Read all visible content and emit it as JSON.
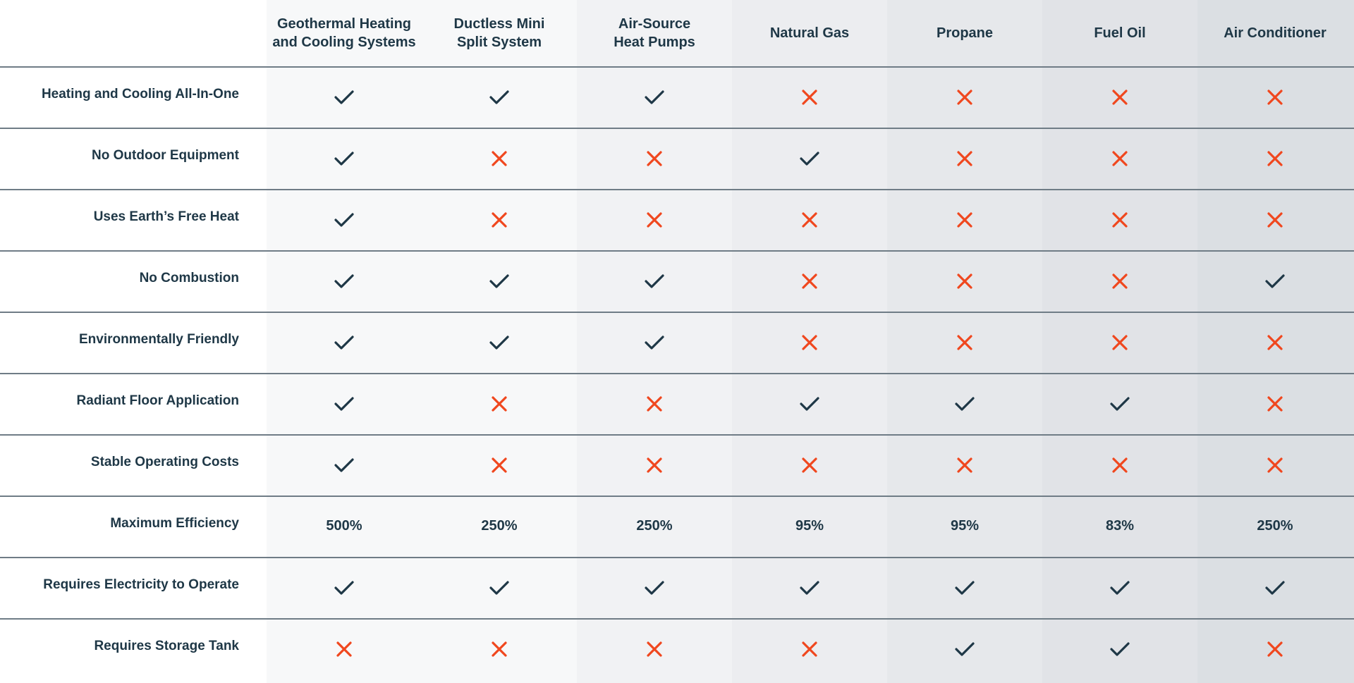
{
  "colors": {
    "check": "#1e3746",
    "cross": "#f0471e",
    "text": "#1e3746",
    "divider": "#6f7c86",
    "label_bg": "#ffffff",
    "column_backgrounds": [
      "#f7f8f9",
      "#f7f8f9",
      "#f1f2f4",
      "#ecedf0",
      "#e6e8eb",
      "#e1e3e7",
      "#dbdfe3"
    ]
  },
  "icons": {
    "yes": "check-icon",
    "no": "cross-icon"
  },
  "columns": [
    "Geothermal Heating\nand Cooling Systems",
    "Ductless Mini\nSplit System",
    "Air-Source\nHeat Pumps",
    "Natural Gas",
    "Propane",
    "Fuel Oil",
    "Air Conditioner"
  ],
  "rows": [
    {
      "label": "Heating and Cooling All-In-One",
      "values": [
        "yes",
        "yes",
        "yes",
        "no",
        "no",
        "no",
        "no"
      ]
    },
    {
      "label": "No Outdoor Equipment",
      "values": [
        "yes",
        "no",
        "no",
        "yes",
        "no",
        "no",
        "no"
      ]
    },
    {
      "label": "Uses Earth’s Free Heat",
      "values": [
        "yes",
        "no",
        "no",
        "no",
        "no",
        "no",
        "no"
      ]
    },
    {
      "label": "No Combustion",
      "values": [
        "yes",
        "yes",
        "yes",
        "no",
        "no",
        "no",
        "yes"
      ]
    },
    {
      "label": "Environmentally Friendly",
      "values": [
        "yes",
        "yes",
        "yes",
        "no",
        "no",
        "no",
        "no"
      ]
    },
    {
      "label": "Radiant Floor Application",
      "values": [
        "yes",
        "no",
        "no",
        "yes",
        "yes",
        "yes",
        "no"
      ]
    },
    {
      "label": "Stable Operating Costs",
      "values": [
        "yes",
        "no",
        "no",
        "no",
        "no",
        "no",
        "no"
      ]
    },
    {
      "label": "Maximum Efficiency",
      "values": [
        "500%",
        "250%",
        "250%",
        "95%",
        "95%",
        "83%",
        "250%"
      ]
    },
    {
      "label": "Requires Electricity to Operate",
      "values": [
        "yes",
        "yes",
        "yes",
        "yes",
        "yes",
        "yes",
        "yes"
      ]
    },
    {
      "label": "Requires Storage Tank",
      "values": [
        "no",
        "no",
        "no",
        "no",
        "yes",
        "yes",
        "no"
      ]
    }
  ]
}
